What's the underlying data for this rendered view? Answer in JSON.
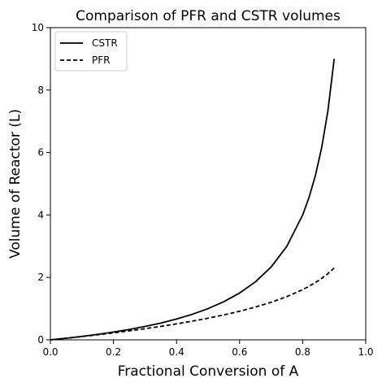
{
  "chart_data": {
    "type": "line",
    "title": "Comparison of PFR and CSTR volumes",
    "xlabel": "Fractional Conversion of A",
    "ylabel": "Volume of Reactor (L)",
    "xlim": [
      0.0,
      1.0
    ],
    "ylim": [
      0,
      10
    ],
    "xticks": [
      "0.0",
      "0.2",
      "0.4",
      "0.6",
      "0.8",
      "1.0"
    ],
    "yticks": [
      "0",
      "2",
      "4",
      "6",
      "8",
      "10"
    ],
    "grid": false,
    "legend": {
      "placement": "top-left"
    },
    "series": [
      {
        "name": "CSTR",
        "style": "solid",
        "color": "#000000",
        "x": [
          0.0,
          0.05,
          0.1,
          0.15,
          0.2,
          0.25,
          0.3,
          0.35,
          0.4,
          0.45,
          0.5,
          0.55,
          0.6,
          0.65,
          0.7,
          0.75,
          0.8,
          0.82,
          0.84,
          0.86,
          0.88,
          0.9
        ],
        "y": [
          0.0,
          0.053,
          0.111,
          0.176,
          0.25,
          0.333,
          0.429,
          0.538,
          0.667,
          0.818,
          1.0,
          1.222,
          1.5,
          1.857,
          2.333,
          3.0,
          4.0,
          4.556,
          5.25,
          6.143,
          7.333,
          9.0
        ]
      },
      {
        "name": "PFR",
        "style": "dashed",
        "color": "#000000",
        "x": [
          0.0,
          0.05,
          0.1,
          0.15,
          0.2,
          0.25,
          0.3,
          0.35,
          0.4,
          0.45,
          0.5,
          0.55,
          0.6,
          0.65,
          0.7,
          0.75,
          0.8,
          0.82,
          0.84,
          0.86,
          0.88,
          0.9
        ],
        "y": [
          0.0,
          0.051,
          0.105,
          0.163,
          0.223,
          0.288,
          0.357,
          0.431,
          0.511,
          0.598,
          0.693,
          0.799,
          0.916,
          1.05,
          1.204,
          1.386,
          1.609,
          1.715,
          1.833,
          1.966,
          2.12,
          2.303
        ]
      }
    ]
  }
}
